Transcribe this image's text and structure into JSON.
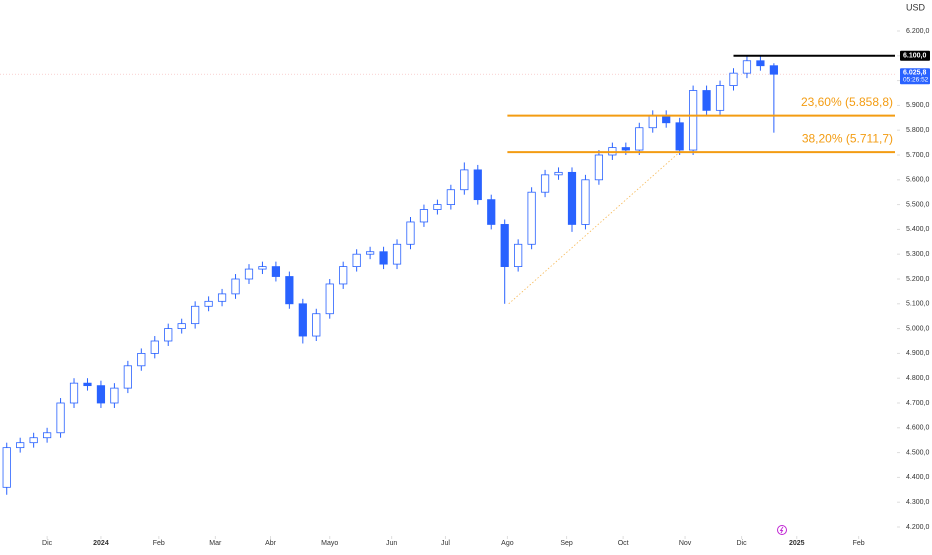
{
  "chart_data": {
    "type": "candlestick",
    "currency": "USD",
    "up_color": "#ffffff",
    "down_color": "#2962ff",
    "edge_color": "#2962ff",
    "open": [
      4360,
      4520,
      4540,
      4560,
      4580,
      4700,
      4780,
      4770,
      4700,
      4760,
      4850,
      4900,
      4950,
      5000,
      5020,
      5090,
      5110,
      5140,
      5200,
      5240,
      5250,
      5210,
      5100,
      4970,
      5060,
      5180,
      5250,
      5300,
      5310,
      5260,
      5340,
      5430,
      5480,
      5500,
      5560,
      5640,
      5520,
      5420,
      5250,
      5340,
      5550,
      5620,
      5630,
      5420,
      5600,
      5700,
      5730,
      5720,
      5810,
      5860,
      5830,
      5720,
      5960,
      5880,
      5980,
      6030,
      6080,
      6060
    ],
    "high": [
      4540,
      4560,
      4580,
      4600,
      4720,
      4800,
      4800,
      4790,
      4780,
      4870,
      4920,
      4970,
      5020,
      5040,
      5110,
      5130,
      5160,
      5220,
      5260,
      5270,
      5270,
      5230,
      5120,
      5080,
      5200,
      5270,
      5320,
      5330,
      5330,
      5360,
      5450,
      5500,
      5520,
      5580,
      5670,
      5660,
      5540,
      5440,
      5360,
      5570,
      5640,
      5650,
      5650,
      5620,
      5720,
      5750,
      5750,
      5830,
      5880,
      5880,
      5850,
      5980,
      5980,
      6000,
      6050,
      6100,
      6100,
      6070
    ],
    "low": [
      4330,
      4500,
      4520,
      4540,
      4560,
      4680,
      4750,
      4680,
      4680,
      4740,
      4830,
      4880,
      4930,
      4980,
      5000,
      5070,
      5090,
      5120,
      5180,
      5220,
      5190,
      5080,
      4940,
      4950,
      5040,
      5160,
      5230,
      5280,
      5240,
      5240,
      5320,
      5410,
      5460,
      5480,
      5540,
      5500,
      5400,
      5100,
      5230,
      5320,
      5530,
      5600,
      5390,
      5400,
      5580,
      5680,
      5700,
      5700,
      5790,
      5810,
      5700,
      5700,
      5860,
      5860,
      5960,
      6010,
      6040,
      5790
    ],
    "close": [
      4520,
      4540,
      4560,
      4580,
      4700,
      4780,
      4770,
      4700,
      4760,
      4850,
      4900,
      4950,
      5000,
      5020,
      5090,
      5110,
      5140,
      5200,
      5240,
      5250,
      5210,
      5100,
      4970,
      5060,
      5180,
      5250,
      5300,
      5310,
      5260,
      5340,
      5430,
      5480,
      5500,
      5560,
      5640,
      5520,
      5420,
      5250,
      5340,
      5550,
      5620,
      5630,
      5420,
      5600,
      5700,
      5730,
      5720,
      5810,
      5860,
      5830,
      5720,
      5960,
      5880,
      5980,
      6030,
      6080,
      6060,
      6025.8
    ],
    "xlim": [
      -0.5,
      66
    ],
    "xticks": [
      {
        "value": 3,
        "label": "Dic"
      },
      {
        "value": 7,
        "label": "2024"
      },
      {
        "value": 11.3,
        "label": "Feb"
      },
      {
        "value": 15.5,
        "label": "Mar"
      },
      {
        "value": 19.6,
        "label": "Abr"
      },
      {
        "value": 24,
        "label": "Mayo"
      },
      {
        "value": 28.6,
        "label": "Jun"
      },
      {
        "value": 32.6,
        "label": "Jul"
      },
      {
        "value": 37.2,
        "label": "Ago"
      },
      {
        "value": 41.6,
        "label": "Sep"
      },
      {
        "value": 45.8,
        "label": "Oct"
      },
      {
        "value": 50.4,
        "label": "Nov"
      },
      {
        "value": 54.6,
        "label": "Dic"
      },
      {
        "value": 58.7,
        "label": "2025"
      },
      {
        "value": 63.3,
        "label": "Feb"
      }
    ],
    "ylim": [
      4200,
      6200
    ],
    "yticks": [
      {
        "value": 6200,
        "label": "6.200,0"
      },
      {
        "value": 6100,
        "label": "6.100,0"
      },
      {
        "value": 6000,
        "label": "6.000,0"
      },
      {
        "value": 5900,
        "label": "5.900,0"
      },
      {
        "value": 5800,
        "label": "5.800,0"
      },
      {
        "value": 5700,
        "label": "5.700,0"
      },
      {
        "value": 5600,
        "label": "5.600,0"
      },
      {
        "value": 5500,
        "label": "5.500,0"
      },
      {
        "value": 5400,
        "label": "5.400,0"
      },
      {
        "value": 5300,
        "label": "5.300,0"
      },
      {
        "value": 5200,
        "label": "5.200,0"
      },
      {
        "value": 5100,
        "label": "5.100,0"
      },
      {
        "value": 5000,
        "label": "5.000,0"
      },
      {
        "value": 4900,
        "label": "4.900,0"
      },
      {
        "value": 4800,
        "label": "4.800,0"
      },
      {
        "value": 4700,
        "label": "4.700,0"
      },
      {
        "value": 4600,
        "label": "4.600,0"
      },
      {
        "value": 4500,
        "label": "4.500,0"
      },
      {
        "value": 4400,
        "label": "4.400,0"
      },
      {
        "value": 4300,
        "label": "4.300,0"
      },
      {
        "value": 4200,
        "label": "4.200,0"
      }
    ],
    "horizontal_line": {
      "value": 6100,
      "label": "6.100,0",
      "x_start": 54,
      "color": "#000000"
    },
    "last_price": {
      "value": 6025.8,
      "label": "6.025,8",
      "countdown": "05:26:52",
      "color": "#2962ff"
    },
    "fib_levels": [
      {
        "value": 5858.8,
        "label": "23,60% (5.858,8)",
        "x_start": 37.2
      },
      {
        "value": 5711.7,
        "label": "38,20% (5.711,7)",
        "x_start": 37.2
      }
    ],
    "fib_color": "#f39c12",
    "trend_line": {
      "x": [
        37.3,
        50
      ],
      "y": [
        5100,
        5711.7
      ]
    }
  }
}
